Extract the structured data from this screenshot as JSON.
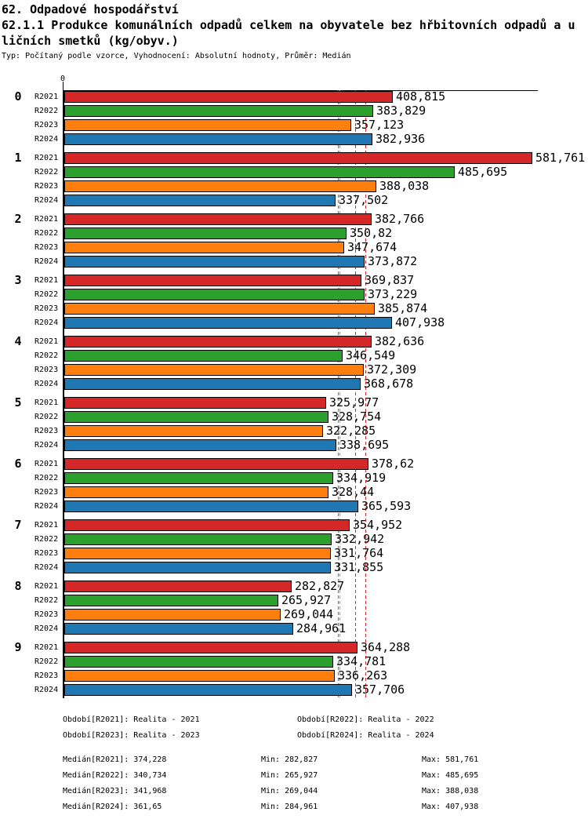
{
  "header": {
    "title": "62. Odpadové hospodářství",
    "subtitle_line1": "62.1.1 Produkce komunálních odpadů celkem na obyvatele bez hřbitovních odpadů a u",
    "subtitle_line2": "ličních smetků (kg/obyv.)",
    "meta": "Typ: Počítaný podle vzorce, Vyhodnocení: Absolutní hodnoty, Průměr: Medián"
  },
  "chart_data": {
    "type": "bar",
    "orientation": "horizontal",
    "title": "62.1.1 Produkce komunálních odpadů celkem na obyvatele bez hřbitovních odpadů a uličních smetků (kg/obyv.)",
    "unit": "kg/obyv.",
    "x_axis": {
      "zero_label": "0",
      "min": 0,
      "max_rendered": 590,
      "grid": false
    },
    "series_names": [
      "R2021",
      "R2022",
      "R2023",
      "R2024"
    ],
    "series_colors": {
      "R2021": "#d62728",
      "R2022": "#2ca02c",
      "R2023": "#ff7f0e",
      "R2024": "#1f77b4"
    },
    "categories": [
      "0",
      "1",
      "2",
      "3",
      "4",
      "5",
      "6",
      "7",
      "8",
      "9"
    ],
    "groups": [
      {
        "label": "0",
        "bars": [
          {
            "series": "R2021",
            "value": 408.815,
            "display": "408,815"
          },
          {
            "series": "R2022",
            "value": 383.829,
            "display": "383,829"
          },
          {
            "series": "R2023",
            "value": 357.123,
            "display": "357,123"
          },
          {
            "series": "R2024",
            "value": 382.936,
            "display": "382,936"
          }
        ]
      },
      {
        "label": "1",
        "bars": [
          {
            "series": "R2021",
            "value": 581.761,
            "display": "581,761"
          },
          {
            "series": "R2022",
            "value": 485.695,
            "display": "485,695"
          },
          {
            "series": "R2023",
            "value": 388.038,
            "display": "388,038"
          },
          {
            "series": "R2024",
            "value": 337.502,
            "display": "337,502"
          }
        ]
      },
      {
        "label": "2",
        "bars": [
          {
            "series": "R2021",
            "value": 382.766,
            "display": "382,766"
          },
          {
            "series": "R2022",
            "value": 350.82,
            "display": "350,82"
          },
          {
            "series": "R2023",
            "value": 347.674,
            "display": "347,674"
          },
          {
            "series": "R2024",
            "value": 373.872,
            "display": "373,872"
          }
        ]
      },
      {
        "label": "3",
        "bars": [
          {
            "series": "R2021",
            "value": 369.837,
            "display": "369,837"
          },
          {
            "series": "R2022",
            "value": 373.229,
            "display": "373,229"
          },
          {
            "series": "R2023",
            "value": 385.874,
            "display": "385,874"
          },
          {
            "series": "R2024",
            "value": 407.938,
            "display": "407,938"
          }
        ]
      },
      {
        "label": "4",
        "bars": [
          {
            "series": "R2021",
            "value": 382.636,
            "display": "382,636"
          },
          {
            "series": "R2022",
            "value": 346.549,
            "display": "346,549"
          },
          {
            "series": "R2023",
            "value": 372.309,
            "display": "372,309"
          },
          {
            "series": "R2024",
            "value": 368.678,
            "display": "368,678"
          }
        ]
      },
      {
        "label": "5",
        "bars": [
          {
            "series": "R2021",
            "value": 325.977,
            "display": "325,977"
          },
          {
            "series": "R2022",
            "value": 328.754,
            "display": "328,754"
          },
          {
            "series": "R2023",
            "value": 322.285,
            "display": "322,285"
          },
          {
            "series": "R2024",
            "value": 338.695,
            "display": "338,695"
          }
        ]
      },
      {
        "label": "6",
        "bars": [
          {
            "series": "R2021",
            "value": 378.62,
            "display": "378,62"
          },
          {
            "series": "R2022",
            "value": 334.919,
            "display": "334,919"
          },
          {
            "series": "R2023",
            "value": 328.44,
            "display": "328,44"
          },
          {
            "series": "R2024",
            "value": 365.593,
            "display": "365,593"
          }
        ]
      },
      {
        "label": "7",
        "bars": [
          {
            "series": "R2021",
            "value": 354.952,
            "display": "354,952"
          },
          {
            "series": "R2022",
            "value": 332.942,
            "display": "332,942"
          },
          {
            "series": "R2023",
            "value": 331.764,
            "display": "331,764"
          },
          {
            "series": "R2024",
            "value": 331.855,
            "display": "331,855"
          }
        ]
      },
      {
        "label": "8",
        "bars": [
          {
            "series": "R2021",
            "value": 282.827,
            "display": "282,827"
          },
          {
            "series": "R2022",
            "value": 265.927,
            "display": "265,927"
          },
          {
            "series": "R2023",
            "value": 269.044,
            "display": "269,044"
          },
          {
            "series": "R2024",
            "value": 284.961,
            "display": "284,961"
          }
        ]
      },
      {
        "label": "9",
        "bars": [
          {
            "series": "R2021",
            "value": 364.288,
            "display": "364,288"
          },
          {
            "series": "R2022",
            "value": 334.781,
            "display": "334,781"
          },
          {
            "series": "R2023",
            "value": 336.263,
            "display": "336,263"
          },
          {
            "series": "R2024",
            "value": 357.706,
            "display": "357,706"
          }
        ]
      }
    ],
    "median_lines": [
      {
        "series": "R2021",
        "value": 374.228,
        "color": "#d62728"
      },
      {
        "series": "R2022",
        "value": 340.734,
        "color": "#2ca02c"
      },
      {
        "series": "R2023",
        "value": 341.968,
        "color": "#ff7f0e"
      },
      {
        "series": "R2024",
        "value": 361.65,
        "color": "#1f77b4"
      }
    ]
  },
  "legend": {
    "items": [
      "Období[R2021]: Realita - 2021",
      "Období[R2022]: Realita - 2022",
      "Období[R2023]: Realita - 2023",
      "Období[R2024]: Realita - 2024"
    ]
  },
  "stats": {
    "rows": [
      {
        "median": "Medián[R2021]: 374,228",
        "min": "Min: 282,827",
        "max": "Max: 581,761"
      },
      {
        "median": "Medián[R2022]: 340,734",
        "min": "Min: 265,927",
        "max": "Max: 485,695"
      },
      {
        "median": "Medián[R2023]: 341,968",
        "min": "Min: 269,044",
        "max": "Max: 388,038"
      },
      {
        "median": "Medián[R2024]: 361,65",
        "min": "Min: 284,961",
        "max": "Max: 407,938"
      }
    ]
  }
}
